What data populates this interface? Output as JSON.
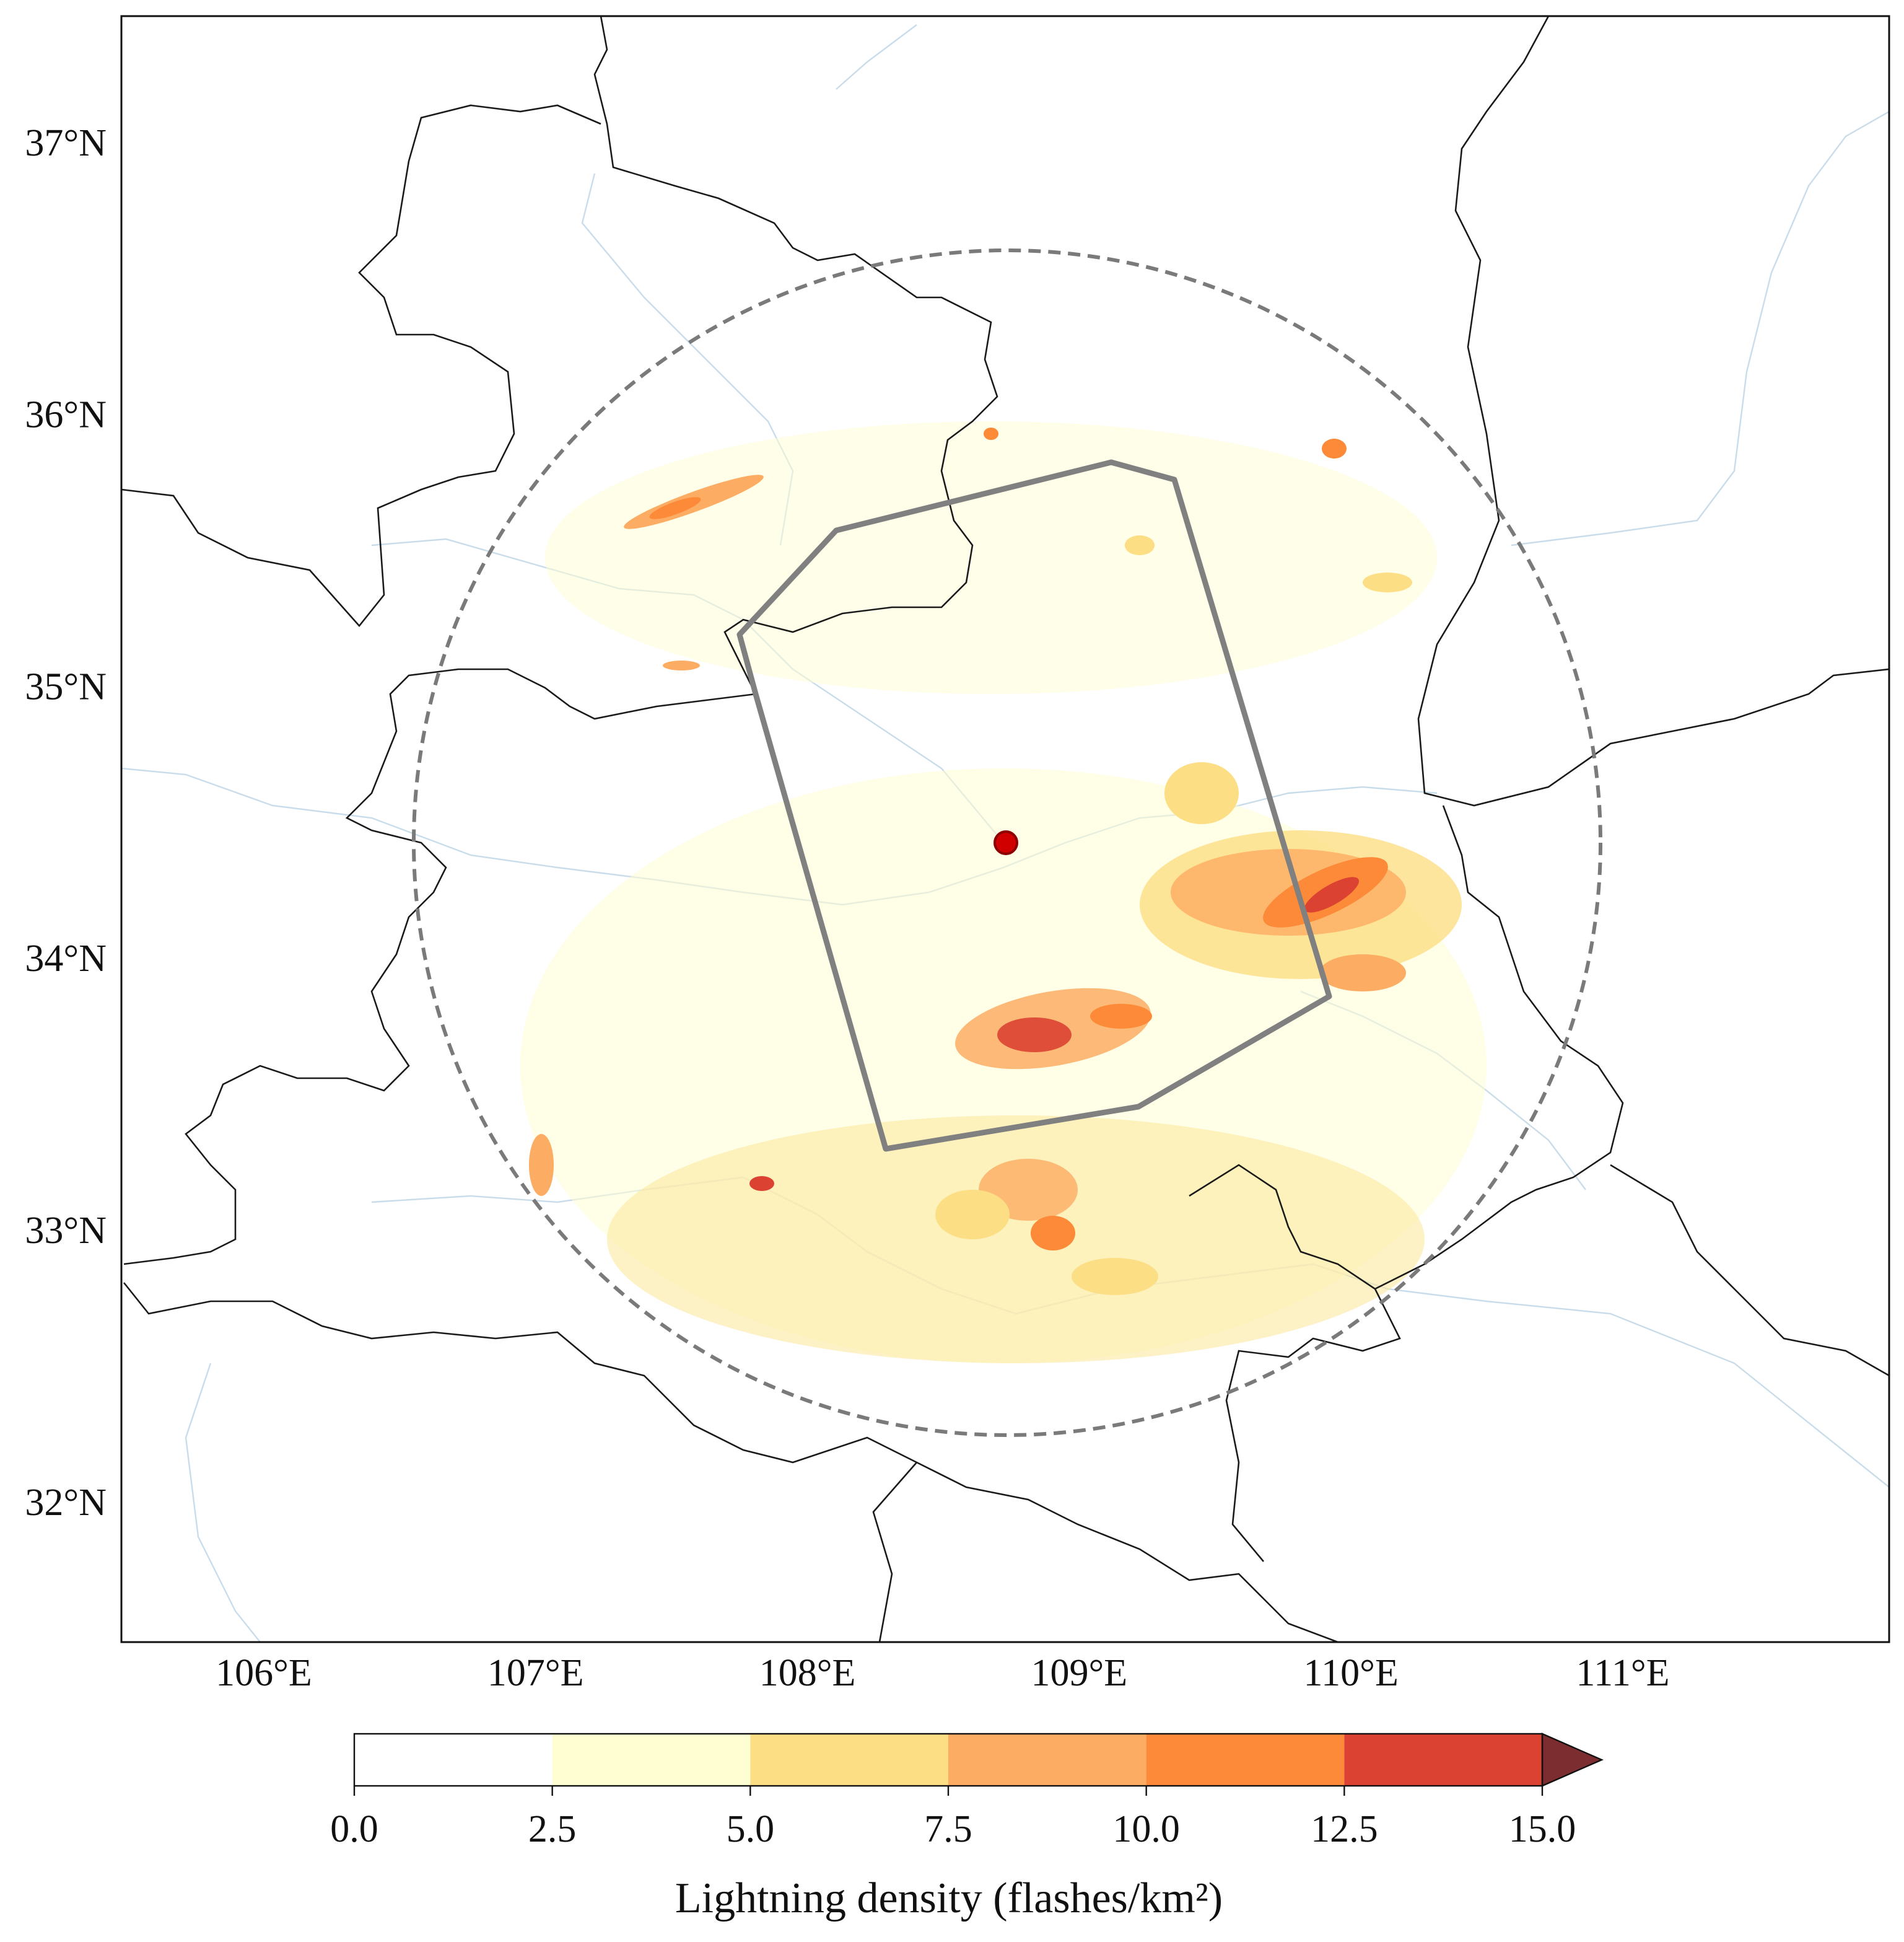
{
  "chart_data": {
    "type": "map",
    "xlim": [
      105.476,
      111.98
    ],
    "ylim": [
      31.5,
      37.48
    ],
    "xticks": [
      {
        "value": 106,
        "label": "106°E"
      },
      {
        "value": 107,
        "label": "107°E"
      },
      {
        "value": 108,
        "label": "108°E"
      },
      {
        "value": 109,
        "label": "109°E"
      },
      {
        "value": 110,
        "label": "110°E"
      },
      {
        "value": 111,
        "label": "111°E"
      }
    ],
    "yticks": [
      {
        "value": 32,
        "label": "32°N"
      },
      {
        "value": 33,
        "label": "33°N"
      },
      {
        "value": 34,
        "label": "34°N"
      },
      {
        "value": 35,
        "label": "35°N"
      },
      {
        "value": 36,
        "label": "36°N"
      },
      {
        "value": 37,
        "label": "37°N"
      }
    ],
    "colorbar": {
      "label": "Lightning density (flashes/km²)",
      "ticks": [
        {
          "value": 0,
          "label": "0.0"
        },
        {
          "value": 2.5,
          "label": "2.5"
        },
        {
          "value": 5,
          "label": "5.0"
        },
        {
          "value": 7.5,
          "label": "7.5"
        },
        {
          "value": 10,
          "label": "10.0"
        },
        {
          "value": 12.5,
          "label": "12.5"
        },
        {
          "value": 15,
          "label": "15.0"
        }
      ],
      "colors": [
        "#ffffff",
        "#fffdd2",
        "#fcdf84",
        "#fcad63",
        "#fc8a38",
        "#dc4231"
      ],
      "extend_color": "#7c2d2f"
    }
  }
}
